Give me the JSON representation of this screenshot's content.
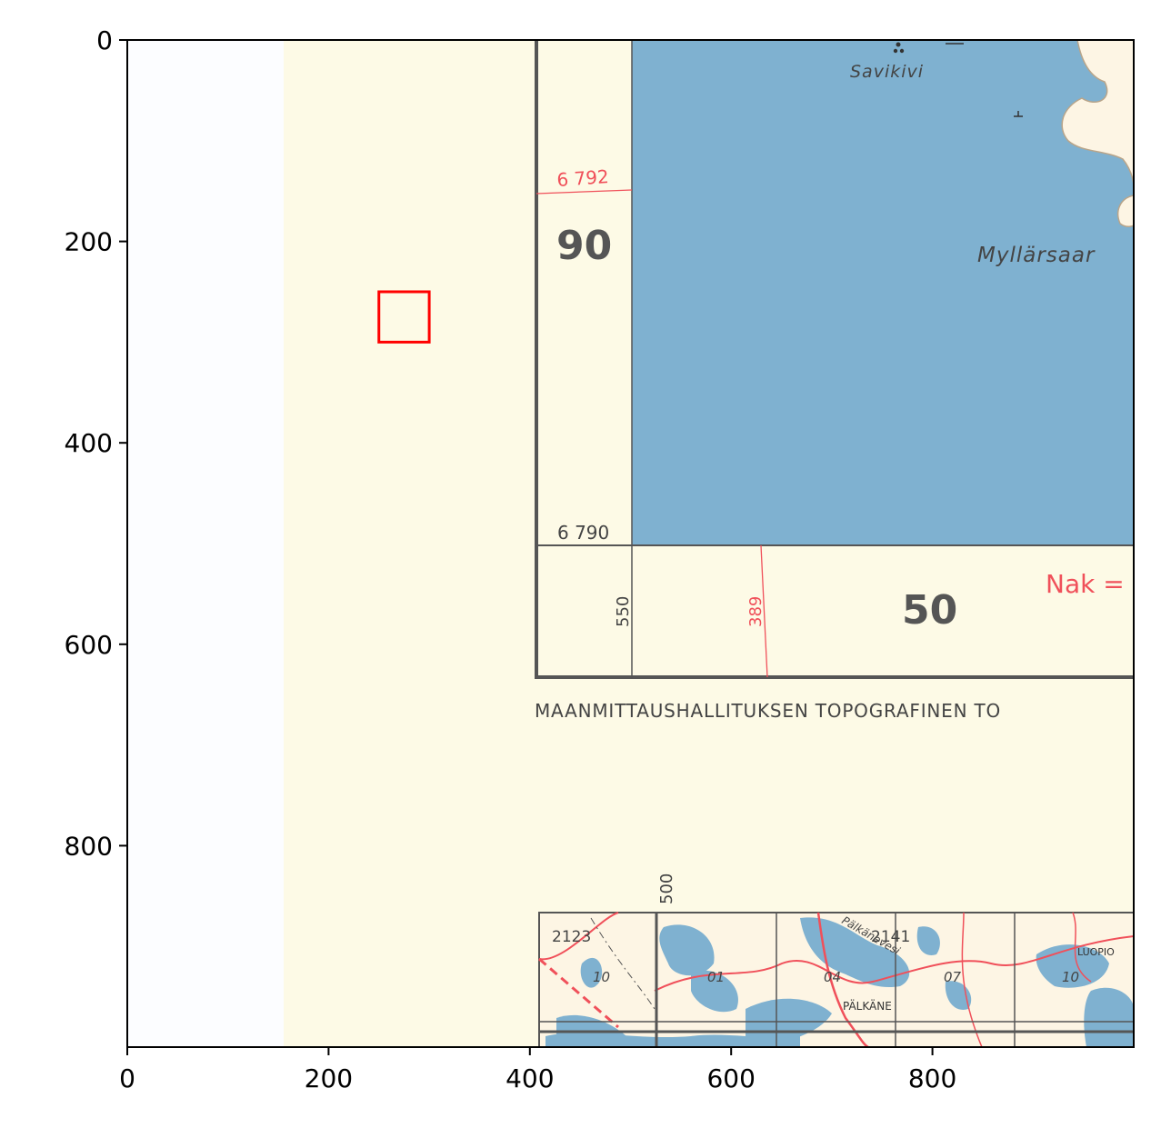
{
  "axes": {
    "x_ticks": [
      "0",
      "200",
      "400",
      "600",
      "800"
    ],
    "y_ticks": [
      "0",
      "200",
      "400",
      "600",
      "800"
    ],
    "xlim": [
      0,
      1000
    ],
    "ylim": [
      1000,
      0
    ]
  },
  "marker": {
    "shape": "rectangle",
    "color": "#ff0000",
    "x": [
      250,
      300
    ],
    "y": [
      250,
      300
    ]
  },
  "map": {
    "place_savikivi": "Savikivi",
    "place_myllarsaari": "Myllärsaar",
    "grid_6792": "6 792",
    "grid_6790": "6 790",
    "label_90": "90",
    "label_50": "50",
    "grid_550": "550",
    "grid_389": "389",
    "nak": "Nak =",
    "publisher": "MAANMITTAUSHALLITUKSEN TOPOGRAFINEN TO",
    "grid_500": "500",
    "sheet_2123": "2123",
    "sheet_2141": "2141",
    "inset_10a": "10",
    "inset_01": "01",
    "inset_04": "04",
    "inset_07": "07",
    "inset_10b": "10",
    "place_palkane": "PÄLKÄNE",
    "place_luopio": "LUOPIO",
    "lake_palkanevesi": "Pälkänevesi"
  },
  "colors": {
    "paper": "#fdfae6",
    "water": "#7fb1d0",
    "grid_red": "#f0505a",
    "ink": "#4a4a4a"
  }
}
